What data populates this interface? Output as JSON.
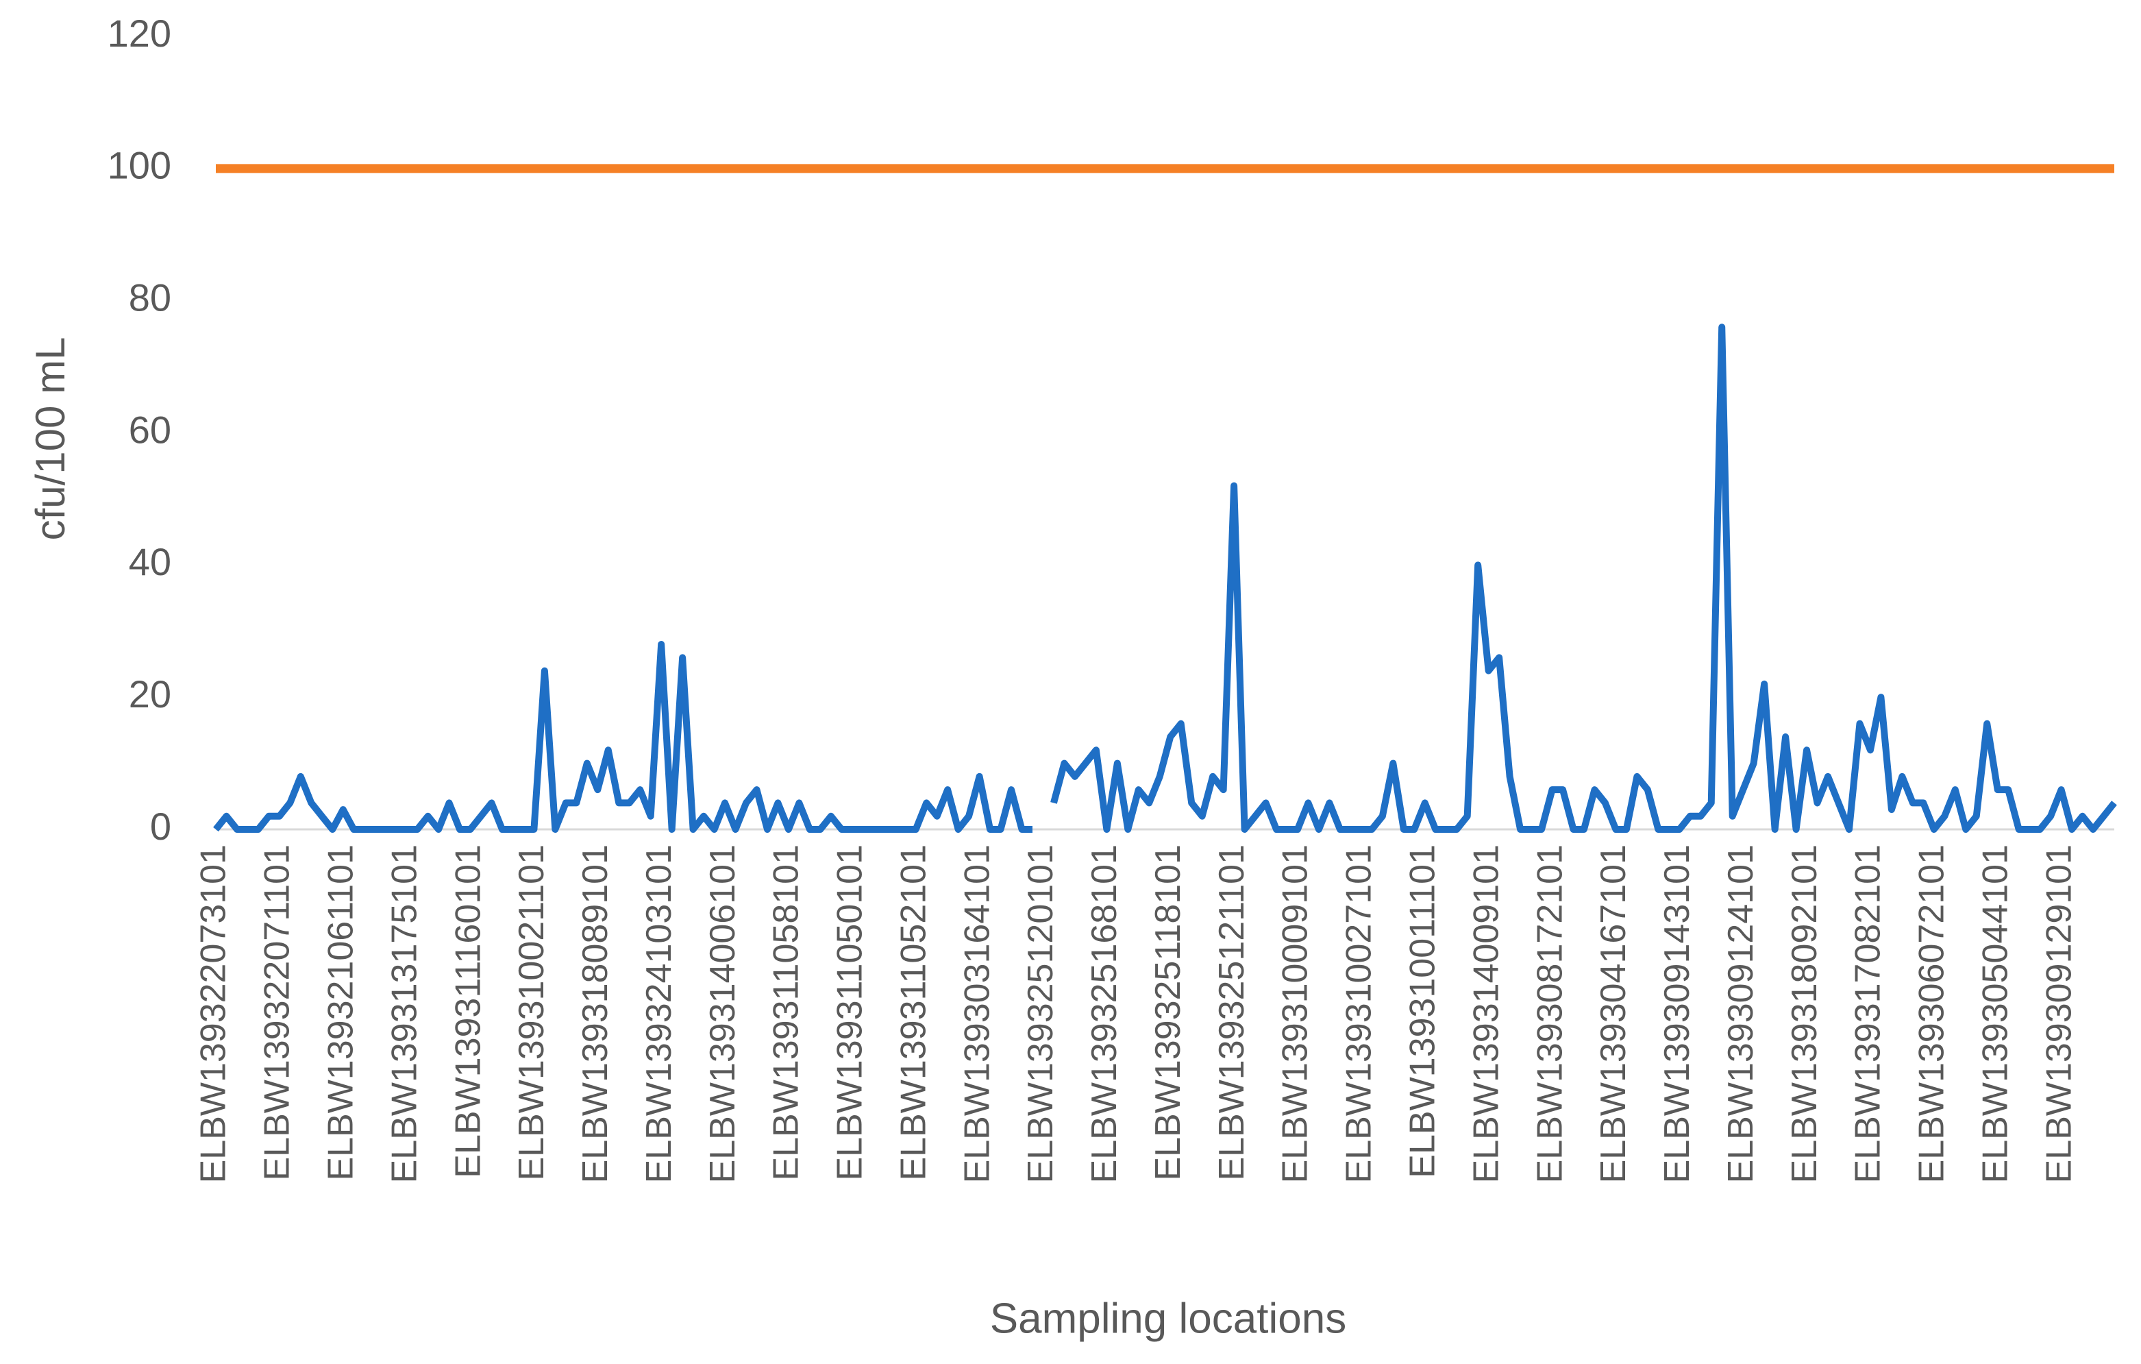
{
  "chart_data": {
    "type": "line",
    "y_label": "cfu/100 mL",
    "x_label": "Sampling locations",
    "categories": [
      "ELBW139322073101",
      null,
      null,
      null,
      null,
      null,
      "ELBW139322071101",
      null,
      null,
      null,
      null,
      null,
      "ELBW139321061101",
      null,
      null,
      null,
      null,
      null,
      "ELBW139313175101",
      null,
      null,
      null,
      null,
      null,
      "ELBW139311160101",
      null,
      null,
      null,
      null,
      null,
      "ELBW139310021101",
      null,
      null,
      null,
      null,
      null,
      "ELBW139318089101",
      null,
      null,
      null,
      null,
      null,
      "ELBW139324103101",
      null,
      null,
      null,
      null,
      null,
      "ELBW139314006101",
      null,
      null,
      null,
      null,
      null,
      "ELBW139311058101",
      null,
      null,
      null,
      null,
      null,
      "ELBW139311050101",
      null,
      null,
      null,
      null,
      null,
      "ELBW139311052101",
      null,
      null,
      null,
      null,
      null,
      "ELBW139303164101",
      null,
      null,
      null,
      null,
      null,
      "ELBW139325120101",
      null,
      null,
      null,
      null,
      null,
      "ELBW139325168101",
      null,
      null,
      null,
      null,
      null,
      "ELBW139325118101",
      null,
      null,
      null,
      null,
      null,
      "ELBW139325121101",
      null,
      null,
      null,
      null,
      null,
      "ELBW139310009101",
      null,
      null,
      null,
      null,
      null,
      "ELBW139310027101",
      null,
      null,
      null,
      null,
      null,
      "ELBW139310011101",
      null,
      null,
      null,
      null,
      null,
      "ELBW139314009101",
      null,
      null,
      null,
      null,
      null,
      "ELBW139308172101",
      null,
      null,
      null,
      null,
      null,
      "ELBW139304167101",
      null,
      null,
      null,
      null,
      null,
      "ELBW139309143101",
      null,
      null,
      null,
      null,
      null,
      "ELBW139309124101",
      null,
      null,
      null,
      null,
      null,
      "ELBW139318092101",
      null,
      null,
      null,
      null,
      null,
      "ELBW139317082101",
      null,
      null,
      null,
      null,
      null,
      "ELBW139306072101",
      null,
      null,
      null,
      null,
      null,
      "ELBW139305044101",
      null,
      null,
      null,
      null,
      null,
      "ELBW139309129101",
      null,
      null,
      null,
      null,
      null
    ],
    "series": [
      {
        "color": "#1f6fc5",
        "values": [
          0,
          2,
          0,
          0,
          0,
          2,
          2,
          4,
          8,
          4,
          2,
          0,
          3,
          0,
          0,
          0,
          0,
          0,
          0,
          0,
          2,
          0,
          4,
          0,
          0,
          2,
          4,
          0,
          0,
          0,
          0,
          24,
          0,
          4,
          4,
          10,
          6,
          12,
          4,
          4,
          6,
          2,
          28,
          0,
          26,
          0,
          2,
          0,
          4,
          0,
          4,
          6,
          0,
          4,
          0,
          4,
          0,
          0,
          2,
          0,
          0,
          0,
          0,
          0,
          0,
          0,
          0,
          4,
          2,
          6,
          0,
          2,
          8,
          0,
          0,
          6,
          0,
          0,
          null,
          4,
          10,
          8,
          10,
          12,
          0,
          10,
          0,
          6,
          4,
          8,
          14,
          16,
          4,
          2,
          8,
          6,
          52,
          0,
          2,
          4,
          0,
          0,
          0,
          4,
          0,
          4,
          0,
          0,
          0,
          0,
          2,
          10,
          0,
          0,
          4,
          0,
          0,
          0,
          2,
          40,
          24,
          26,
          8,
          0,
          0,
          0,
          6,
          6,
          0,
          0,
          6,
          4,
          0,
          0,
          8,
          6,
          0,
          0,
          0,
          2,
          2,
          4,
          76,
          2,
          6,
          10,
          22,
          0,
          14,
          0,
          12,
          4,
          8,
          4,
          0,
          16,
          12,
          20,
          3,
          8,
          4,
          4,
          0,
          2,
          6,
          0,
          2,
          16,
          6,
          6,
          0,
          0,
          0,
          2,
          6,
          0,
          2,
          0,
          2,
          4
        ]
      },
      {
        "color": "#f58025",
        "values": [
          100,
          100,
          100,
          100,
          100,
          100,
          100,
          100,
          100,
          100,
          100,
          100,
          100,
          100,
          100,
          100,
          100,
          100,
          100,
          100,
          100,
          100,
          100,
          100,
          100,
          100,
          100,
          100,
          100,
          100,
          100,
          100,
          100,
          100,
          100,
          100,
          100,
          100,
          100,
          100,
          100,
          100,
          100,
          100,
          100,
          100,
          100,
          100,
          100,
          100,
          100,
          100,
          100,
          100,
          100,
          100,
          100,
          100,
          100,
          100,
          100,
          100,
          100,
          100,
          100,
          100,
          100,
          100,
          100,
          100,
          100,
          100,
          100,
          100,
          100,
          100,
          100,
          100,
          100,
          100,
          100,
          100,
          100,
          100,
          100,
          100,
          100,
          100,
          100,
          100,
          100,
          100,
          100,
          100,
          100,
          100,
          100,
          100,
          100,
          100,
          100,
          100,
          100,
          100,
          100,
          100,
          100,
          100,
          100,
          100,
          100,
          100,
          100,
          100,
          100,
          100,
          100,
          100,
          100,
          100,
          100,
          100,
          100,
          100,
          100,
          100,
          100,
          100,
          100,
          100,
          100,
          100,
          100,
          100,
          100,
          100,
          100,
          100,
          100,
          100,
          100,
          100,
          100,
          100,
          100,
          100,
          100,
          100,
          100,
          100,
          100,
          100,
          100,
          100,
          100,
          100,
          100,
          100,
          100,
          100,
          100,
          100,
          100,
          100,
          100,
          100,
          100,
          100,
          100,
          100,
          100,
          100,
          100,
          100,
          100,
          100,
          100,
          100,
          100,
          100
        ]
      }
    ],
    "ylim": [
      0,
      120
    ],
    "yticks": [
      0,
      20,
      40,
      60,
      80,
      100,
      120
    ],
    "grid": false
  }
}
